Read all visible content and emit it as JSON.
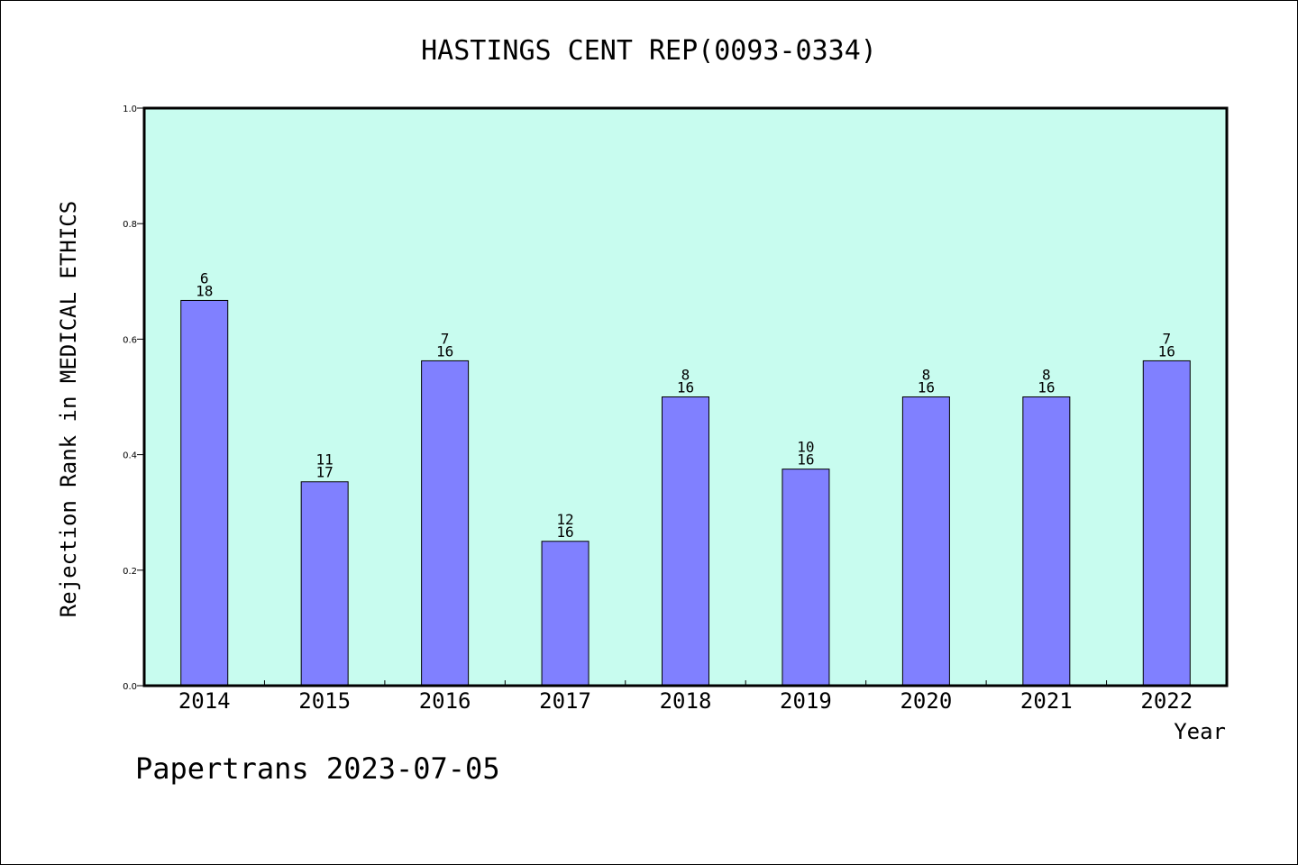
{
  "footer": "Papertrans 2023-07-05",
  "colors": {
    "plot_bg": "#c8fcef",
    "bar": "#8080ff",
    "frame": "#000000"
  },
  "chart_data": {
    "type": "bar",
    "title": "HASTINGS CENT REP(0093-0334)",
    "xlabel": "Year",
    "ylabel": "Rejection Rank in MEDICAL ETHICS",
    "ylim": [
      0,
      1.0
    ],
    "yticks": [
      "0.0",
      "0.2",
      "0.4",
      "0.6",
      "0.8",
      "1.0"
    ],
    "grid": false,
    "categories": [
      "2014",
      "2015",
      "2016",
      "2017",
      "2018",
      "2019",
      "2020",
      "2021",
      "2022"
    ],
    "values": [
      0.667,
      0.353,
      0.5625,
      0.25,
      0.5,
      0.375,
      0.5,
      0.5,
      0.5625
    ],
    "rank": [
      "6",
      "11",
      "7",
      "12",
      "8",
      "10",
      "8",
      "8",
      "7"
    ],
    "total": [
      "18",
      "17",
      "16",
      "16",
      "16",
      "16",
      "16",
      "16",
      "16"
    ]
  }
}
